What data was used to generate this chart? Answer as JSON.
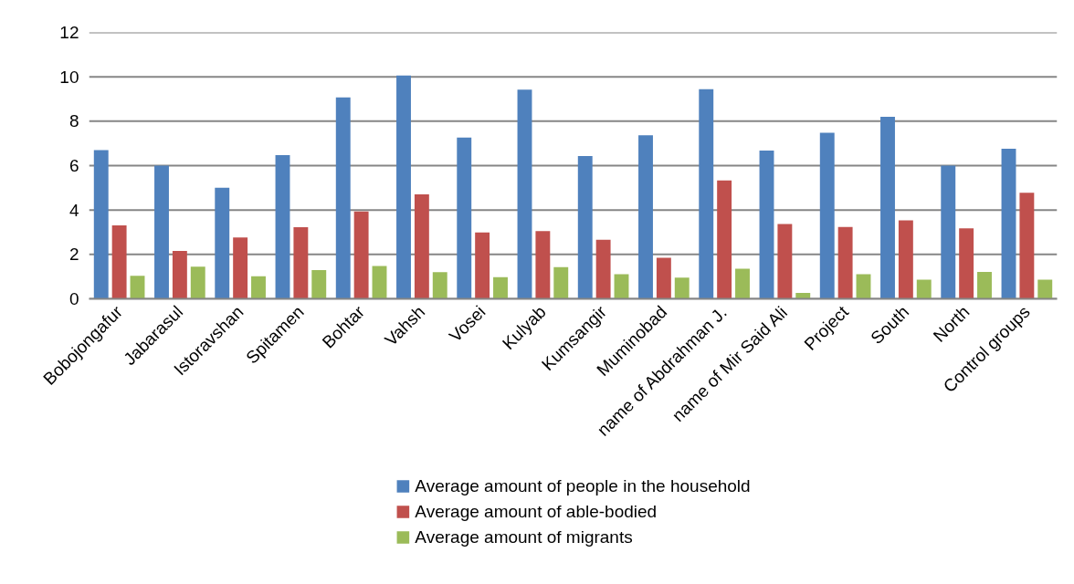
{
  "chart_data": {
    "type": "bar",
    "categories": [
      "Bobojongafur",
      "Jabarasul",
      "Istoravshan",
      "Spitamen",
      "Bohtar",
      "Vahsh",
      "Vosei",
      "Kulyab",
      "Kumsangir",
      "Muminobad",
      "name of Abdrahman J.",
      "name of Mir Said Ali",
      "Project",
      "South",
      "North",
      "Control groups"
    ],
    "series": [
      {
        "name": "Average amount of people in the household",
        "color": "#4f81bd",
        "values": [
          6.7,
          6.0,
          5.0,
          6.47,
          9.07,
          10.06,
          7.26,
          9.42,
          6.43,
          7.37,
          9.44,
          6.68,
          7.48,
          8.2,
          6.0,
          6.76
        ]
      },
      {
        "name": "Average amount of able-bodied",
        "color": "#c0504d",
        "values": [
          3.31,
          2.16,
          2.76,
          3.23,
          3.94,
          4.71,
          2.99,
          3.05,
          2.66,
          1.85,
          5.33,
          3.37,
          3.24,
          3.53,
          3.17,
          4.78
        ]
      },
      {
        "name": "Average amount of migrants",
        "color": "#9bbb59",
        "values": [
          1.04,
          1.45,
          1.02,
          1.29,
          1.48,
          1.2,
          0.98,
          1.43,
          1.11,
          0.96,
          1.36,
          0.27,
          1.11,
          0.86,
          1.21,
          0.86
        ]
      }
    ],
    "ylim": [
      0,
      12
    ],
    "yticks": [
      0,
      2,
      4,
      6,
      8,
      10,
      12
    ],
    "grid": "y",
    "legend": "bottom"
  }
}
